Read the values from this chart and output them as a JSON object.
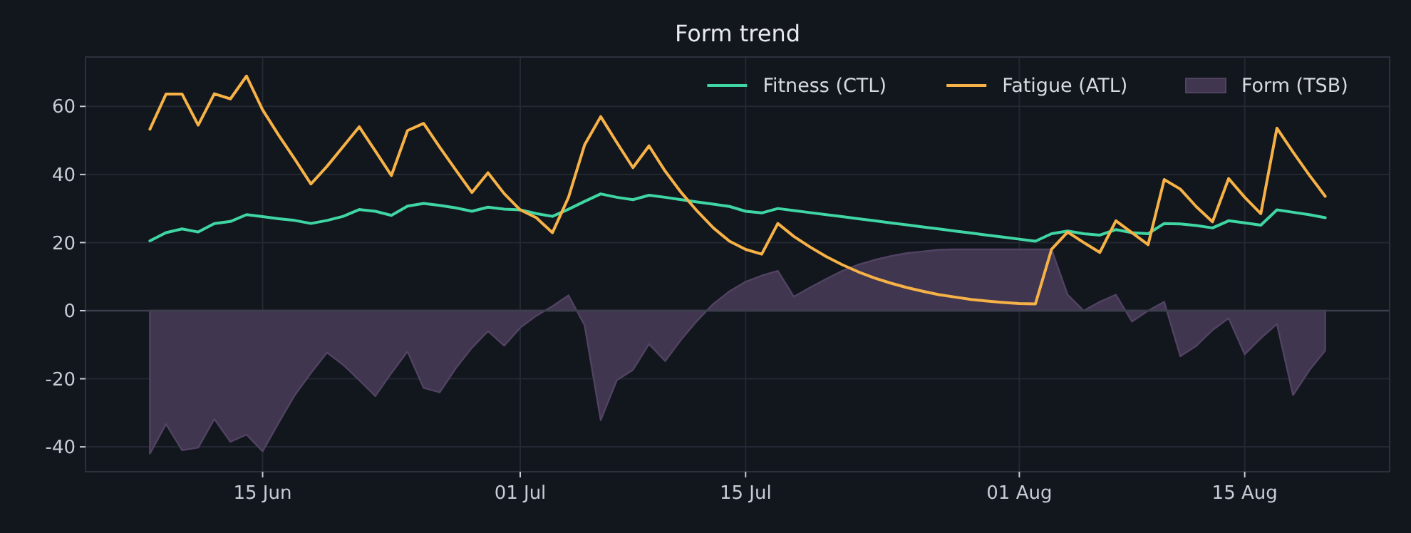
{
  "chart_data": {
    "type": "line",
    "title": "Form trend",
    "x": [
      "--06-08",
      "--06-09",
      "--06-10",
      "--06-11",
      "--06-12",
      "--06-13",
      "--06-14",
      "--06-15",
      "--06-16",
      "--06-17",
      "--06-18",
      "--06-19",
      "--06-20",
      "--06-21",
      "--06-22",
      "--06-23",
      "--06-24",
      "--06-25",
      "--06-26",
      "--06-27",
      "--06-28",
      "--06-29",
      "--06-30",
      "--07-01",
      "--07-02",
      "--07-03",
      "--07-04",
      "--07-05",
      "--07-06",
      "--07-07",
      "--07-08",
      "--07-09",
      "--07-10",
      "--07-11",
      "--07-12",
      "--07-13",
      "--07-14",
      "--07-15",
      "--07-16",
      "--07-17",
      "--07-18",
      "--07-19",
      "--07-20",
      "--07-21",
      "--07-22",
      "--07-23",
      "--07-24",
      "--07-25",
      "--07-26",
      "--07-27",
      "--07-28",
      "--07-29",
      "--07-30",
      "--07-31",
      "--08-01",
      "--08-02",
      "--08-03",
      "--08-04",
      "--08-05",
      "--08-06",
      "--08-07",
      "--08-08",
      "--08-09",
      "--08-10",
      "--08-11",
      "--08-12",
      "--08-13",
      "--08-14",
      "--08-15",
      "--08-16",
      "--08-17",
      "--08-18",
      "--08-19",
      "--08-20"
    ],
    "series": [
      {
        "name": "Fitness (CTL)",
        "color": "#3fd6a4",
        "values": [
          20.5,
          22.9,
          24,
          23.1,
          25.6,
          26.2,
          28.2,
          27.6,
          27,
          26.5,
          25.6,
          26.5,
          27.7,
          29.7,
          29.2,
          28,
          30.7,
          31.5,
          30.9,
          30.2,
          29.2,
          30.4,
          29.8,
          29.6,
          28.5,
          27.7,
          29.8,
          32.1,
          34.3,
          33.3,
          32.6,
          33.9,
          33.3,
          32.6,
          31.9,
          31.3,
          30.6,
          29.2,
          28.7,
          30,
          29.4,
          28.8,
          28.2,
          27.6,
          27,
          26.4,
          25.8,
          25.2,
          24.6,
          24,
          23.4,
          22.8,
          22.2,
          21.6,
          21,
          20.4,
          22.6,
          23.4,
          22.6,
          22.2,
          23.8,
          22.9,
          22.6,
          25.6,
          25.5,
          25,
          24.3,
          26.4,
          25.8,
          25.1,
          29.6,
          28.9,
          28.2,
          27.3
        ]
      },
      {
        "name": "Fatigue (ATL)",
        "color": "#f6b246",
        "values": [
          53.3,
          63.6,
          63.6,
          54.5,
          63.7,
          62.2,
          68.9,
          59,
          51.5,
          44.5,
          37.2,
          42.4,
          48.2,
          54,
          46.9,
          39.7,
          52.9,
          55,
          48,
          41.3,
          34.7,
          40.5,
          34.4,
          29.6,
          27.3,
          22.9,
          33.3,
          48.7,
          57,
          49.4,
          42,
          48.4,
          41,
          34.7,
          29.2,
          24.3,
          20.4,
          18,
          16.6,
          25.6,
          21.8,
          18.7,
          15.9,
          13.5,
          11.4,
          9.6,
          8.1,
          6.8,
          5.7,
          4.7,
          4,
          3.3,
          2.8,
          2.4,
          2.1,
          2,
          18,
          23.1,
          20,
          17.1,
          26.4,
          22.9,
          19.4,
          38.5,
          35.7,
          30.5,
          26.1,
          38.8,
          33.3,
          28.5,
          53.6,
          46.6,
          39.9,
          33.6
        ]
      },
      {
        "name": "Form (TSB)",
        "type": "area",
        "color": "#41364f",
        "values": [
          -42,
          -33.3,
          -41,
          -40.2,
          -31.8,
          -38.5,
          -36.4,
          -41.3,
          -32.9,
          -24.8,
          -18.3,
          -12.3,
          -15.9,
          -20.4,
          -25.1,
          -18.3,
          -12,
          -22.7,
          -24,
          -16.9,
          -10.9,
          -6,
          -10.3,
          -5,
          -1.5,
          1.3,
          4.5,
          -4.3,
          -32.2,
          -20.4,
          -17.4,
          -9.8,
          -14.8,
          -8.5,
          -2.9,
          2,
          5.7,
          8.5,
          10.3,
          11.7,
          4.1,
          6.8,
          9.3,
          11.7,
          13.5,
          14.9,
          16,
          16.9,
          17.4,
          17.9,
          18,
          18,
          18,
          18,
          18,
          18,
          18,
          4.7,
          0,
          2.6,
          4.7,
          -3.2,
          0,
          2.6,
          -13.4,
          -10.3,
          -5.7,
          -2.2,
          -12.8,
          -8.1,
          -3.9,
          -24.8,
          -17.6,
          -11.7
        ]
      }
    ],
    "xlim": [
      "--06-04",
      "--08-24"
    ],
    "xticks": [
      {
        "value": "--06-15",
        "label": "15 Jun"
      },
      {
        "value": "--07-01",
        "label": "01 Jul"
      },
      {
        "value": "--07-15",
        "label": "15 Jul"
      },
      {
        "value": "--08-01",
        "label": "01 Aug"
      },
      {
        "value": "--08-15",
        "label": "15 Aug"
      }
    ],
    "ylim": [
      -47.3,
      74.5
    ],
    "yticks": [
      -40,
      -20,
      0,
      20,
      40,
      60
    ],
    "ref_lines": [
      {
        "axis": "y",
        "value": 0,
        "color": "#3a3f4b"
      }
    ],
    "grid": true,
    "legend": "top right"
  }
}
